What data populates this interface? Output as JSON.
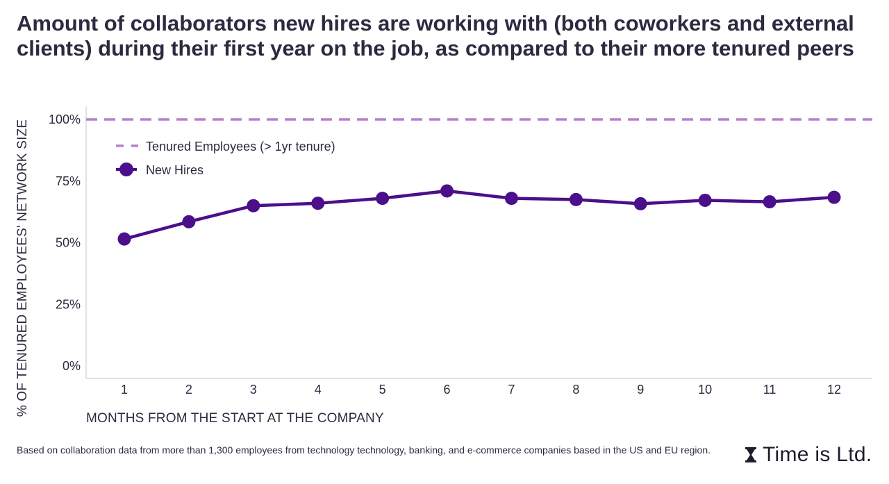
{
  "title": "Amount of collaborators new hires are working with (both coworkers and external clients) during their first year on the job, as compared to their more tenured peers",
  "footnote": "Based on collaboration data from more than 1,300 employees from technology technology, banking, and e-commerce companies based in the US and EU region.",
  "logo": {
    "text": "Time is Ltd.",
    "icon": "hourglass-icon"
  },
  "colors": {
    "new_hires": "#4b0f8c",
    "tenured": "#b77fd3",
    "axis": "#d9d9d9",
    "text": "#2b2b3f"
  },
  "chart_data": {
    "type": "line",
    "xlabel": "MONTHS FROM THE START AT THE COMPANY",
    "ylabel": "% OF TENURED EMPLOYEES' NETWORK SIZE",
    "x": [
      1,
      2,
      3,
      4,
      5,
      6,
      7,
      8,
      9,
      10,
      11,
      12
    ],
    "x_tick_labels": [
      "1",
      "2",
      "3",
      "4",
      "5",
      "6",
      "7",
      "8",
      "9",
      "10",
      "11",
      "12"
    ],
    "ylim": [
      0,
      100
    ],
    "y_ticks": [
      0,
      25,
      50,
      75,
      100
    ],
    "y_tick_labels": [
      "0%",
      "25%",
      "50%",
      "75%",
      "100%"
    ],
    "grid": false,
    "legend_position": "top-left",
    "series": [
      {
        "name": "Tenured Employees (> 1yr tenure)",
        "style": "dashed",
        "color": "#b77fd3",
        "value": 100
      },
      {
        "name": "New Hires",
        "style": "solid-markers",
        "color": "#4b0f8c",
        "values": [
          51.5,
          58.5,
          65,
          66,
          68,
          71,
          68,
          67.5,
          65.8,
          67.2,
          66.6,
          68.4
        ]
      }
    ]
  }
}
